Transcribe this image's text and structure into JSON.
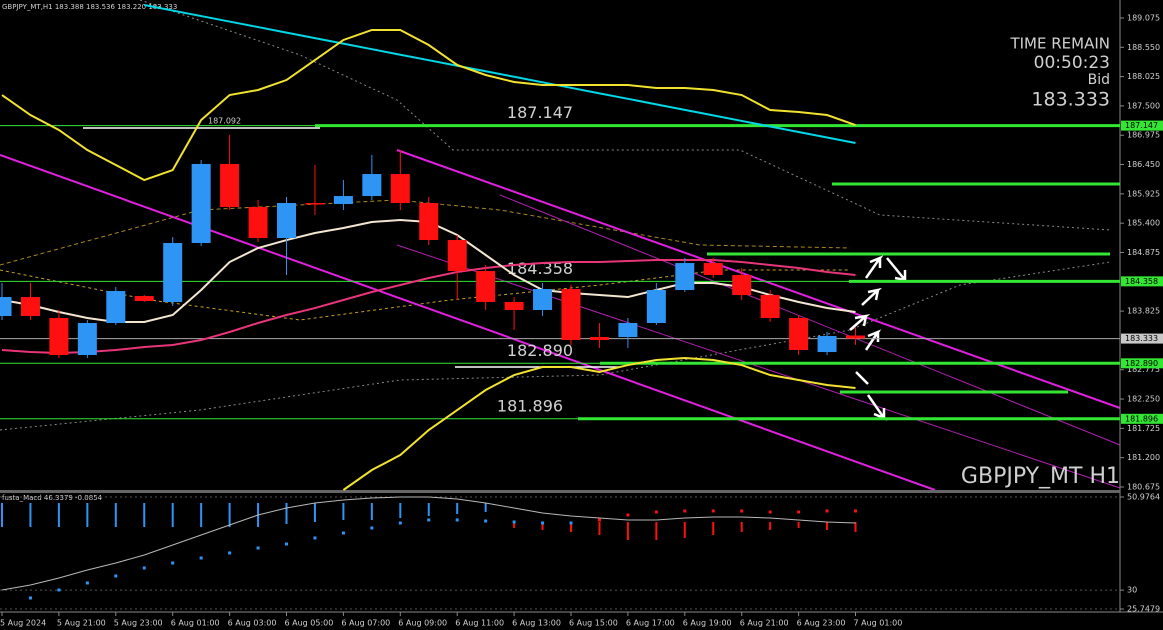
{
  "chart_data": {
    "type": "candlestick",
    "title": "GBPJPY_MT,H1  183.388 183.536 183.220 183.333",
    "watermark": "GBPJPY_MT H1",
    "categories": [
      "5 Aug 2024",
      null,
      "5 Aug 21:00",
      null,
      "5 Aug 23:00",
      null,
      "6 Aug 01:00",
      null,
      "6 Aug 03:00",
      null,
      "6 Aug 05:00",
      null,
      "6 Aug 07:00",
      null,
      "6 Aug 09:00",
      null,
      "6 Aug 11:00",
      null,
      "6 Aug 13:00",
      null,
      "6 Aug 15:00",
      null,
      "6 Aug 17:00",
      null,
      "6 Aug 19:00",
      null,
      "6 Aug 21:00",
      null,
      "6 Aug 23:00",
      null,
      "7 Aug 01:00"
    ],
    "open": [
      183.737,
      184.077,
      183.701,
      183.039,
      183.612,
      184.095,
      183.988,
      185.045,
      186.46,
      185.689,
      185.134,
      185.761,
      185.743,
      185.886,
      186.28,
      185.761,
      185.098,
      184.543,
      183.988,
      183.845,
      184.221,
      183.361,
      183.361,
      183.612,
      184.203,
      184.686,
      184.471,
      184.113,
      183.701,
      183.092,
      183.388
    ],
    "high": [
      184.328,
      184.328,
      183.845,
      183.665,
      184.257,
      184.113,
      185.152,
      186.531,
      186.979,
      185.815,
      185.869,
      186.442,
      186.173,
      186.621,
      186.71,
      185.869,
      185.188,
      184.651,
      184.077,
      184.328,
      184.292,
      183.612,
      183.701,
      184.328,
      184.776,
      184.776,
      184.597,
      184.203,
      183.755,
      183.451,
      183.536
    ],
    "low": [
      183.665,
      183.665,
      182.985,
      182.985,
      183.576,
      183.988,
      183.916,
      184.991,
      185.636,
      185.063,
      184.471,
      185.546,
      185.636,
      185.815,
      185.636,
      185.009,
      184.024,
      183.845,
      183.486,
      183.737,
      183.218,
      183.164,
      183.164,
      183.576,
      184.167,
      184.418,
      184.024,
      183.63,
      183.039,
      183.039,
      183.22
    ],
    "close": [
      184.077,
      183.737,
      183.039,
      183.612,
      184.185,
      184.006,
      185.045,
      186.46,
      185.689,
      185.134,
      185.761,
      185.743,
      185.886,
      186.28,
      185.761,
      185.098,
      184.543,
      183.988,
      183.845,
      184.221,
      183.307,
      183.307,
      183.612,
      184.203,
      184.686,
      184.471,
      184.113,
      183.701,
      183.128,
      183.379,
      183.333
    ],
    "up_color": "#2f95f5",
    "down_color": "#ff1010",
    "ylim": [
      180.621,
      189.397
    ],
    "yticks": [
      189.075,
      {
        "value": 188.55,
        "label": "188.550"
      },
      188.025,
      {
        "value": 187.5,
        "label": "187.500"
      },
      186.975,
      {
        "value": 186.45,
        "label": "186.450"
      },
      185.925,
      {
        "value": 185.4,
        "label": "185.400"
      },
      184.875,
      183.825,
      182.775,
      {
        "value": 182.25,
        "label": "182.250"
      },
      181.725,
      {
        "value": 181.2,
        "label": "181.200"
      },
      180.675
    ],
    "series": [
      {
        "color": "#00d8e8",
        "values": [
          null,
          null,
          null,
          null,
          null,
          189.307,
          189.208,
          189.109,
          189.011,
          188.912,
          188.813,
          188.714,
          188.615,
          188.516,
          188.417,
          188.319,
          188.22,
          188.121,
          188.022,
          187.923,
          187.824,
          187.725,
          187.627,
          187.528,
          187.429,
          187.33,
          187.231,
          187.132,
          187.033,
          186.935,
          186.836
        ]
      },
      {
        "color": "#f2e230",
        "values": [
          187.695,
          187.337,
          187.069,
          186.71,
          186.442,
          186.173,
          186.352,
          187.248,
          187.695,
          187.785,
          187.964,
          188.322,
          188.681,
          188.86,
          188.86,
          188.591,
          188.233,
          188.054,
          187.928,
          187.875,
          187.875,
          187.875,
          187.875,
          187.821,
          187.821,
          187.785,
          187.695,
          187.427,
          187.391,
          187.337,
          187.158
        ]
      },
      {
        "color": "#f2e230",
        "values": [
          null,
          null,
          null,
          null,
          null,
          null,
          null,
          null,
          null,
          null,
          null,
          null,
          180.621,
          180.979,
          181.247,
          181.695,
          182.053,
          182.412,
          182.68,
          182.824,
          182.824,
          182.734,
          182.859,
          182.949,
          182.985,
          182.949,
          182.859,
          182.68,
          182.591,
          182.501,
          182.448
        ]
      },
      {
        "color": "#e8357a",
        "values": [
          183.128,
          183.092,
          183.074,
          183.092,
          183.128,
          183.182,
          183.218,
          183.307,
          183.451,
          183.612,
          183.755,
          183.88,
          184.024,
          184.167,
          184.292,
          184.418,
          184.525,
          184.597,
          184.651,
          184.686,
          184.704,
          184.704,
          184.722,
          184.74,
          184.74,
          184.74,
          184.704,
          184.651,
          184.597,
          184.525,
          184.471
        ]
      },
      {
        "color": "#f3e6d0",
        "values": [
          184.024,
          183.934,
          183.809,
          183.701,
          183.63,
          183.63,
          183.755,
          184.203,
          184.704,
          184.955,
          185.098,
          185.224,
          185.313,
          185.421,
          185.457,
          185.421,
          185.188,
          184.83,
          184.471,
          184.203,
          184.149,
          184.113,
          184.077,
          184.203,
          184.328,
          184.328,
          184.257,
          184.113,
          183.988,
          183.88,
          183.809
        ]
      }
    ],
    "level_color": "#33e633",
    "levels": [
      187.147,
      184.358,
      {
        "value": 182.89,
        "label": "182.890"
      },
      181.896
    ],
    "zones": [
      186.102,
      184.848,
      182.376
    ],
    "current": 183.333,
    "annotation": "187.092",
    "info": {
      "time_remain_label": "TIME REMAIN",
      "time_remain": "00:50:23",
      "bid_label": "Bid",
      "bid": 183.333
    },
    "subchart": {
      "type": "macd",
      "title": "fusta_Macd 46.3379 -0.0854",
      "ylim": [
        25.7479,
        50.9764
      ],
      "yticks": [
        50.9764,
        30,
        25.7479
      ],
      "series": [
        {
          "kind": "bar",
          "color": "#2f95f5",
          "values": [
            44.22,
            44.22,
            44.22,
            44.22,
            44.22,
            44.22,
            44.22,
            44.22,
            44.22,
            44.22,
            44.9,
            45.35,
            45.8,
            45.8,
            46.25,
            46.7,
            47.15,
            47.6,
            null,
            null,
            null,
            null,
            null,
            null,
            null,
            null,
            null,
            null,
            null,
            null,
            null
          ]
        },
        {
          "kind": "bar",
          "color": "#ff1010",
          "values": [
            null,
            null,
            null,
            null,
            null,
            null,
            null,
            null,
            null,
            null,
            null,
            null,
            null,
            null,
            null,
            null,
            null,
            null,
            44.0,
            43.55,
            43.09,
            42.42,
            41.29,
            41.29,
            41.74,
            42.42,
            43.09,
            43.55,
            44.0,
            43.55,
            43.09
          ]
        },
        {
          "kind": "line",
          "color": "#b8b8b8",
          "values": [
            30.03,
            31.16,
            32.73,
            34.53,
            36.11,
            37.91,
            40.17,
            42.42,
            44.67,
            46.92,
            48.5,
            49.63,
            50.3,
            50.75,
            50.97,
            50.97,
            50.53,
            49.63,
            48.5,
            47.37,
            46.7,
            46.25,
            45.8,
            45.8,
            46.25,
            46.47,
            46.47,
            46.25,
            45.8,
            45.35,
            45.12
          ]
        },
        {
          "kind": "dots",
          "color": "#2f95f5",
          "values": [
            null,
            28.23,
            30.03,
            31.61,
            33.19,
            34.99,
            36.11,
            37.24,
            38.37,
            39.49,
            40.39,
            41.75,
            42.87,
            44.0,
            45.12,
            45.8,
            45.8,
            45.57,
            45.35,
            45.12,
            45.12,
            null,
            null,
            null,
            null,
            null,
            null,
            null,
            null,
            null,
            null
          ]
        },
        {
          "kind": "dots",
          "color": "#ff1010",
          "values": [
            null,
            null,
            null,
            null,
            null,
            null,
            null,
            null,
            null,
            null,
            null,
            null,
            null,
            null,
            null,
            null,
            null,
            null,
            null,
            null,
            null,
            45.8,
            46.92,
            47.6,
            47.83,
            47.83,
            47.83,
            47.6,
            47.6,
            47.83,
            47.83
          ]
        }
      ]
    }
  }
}
